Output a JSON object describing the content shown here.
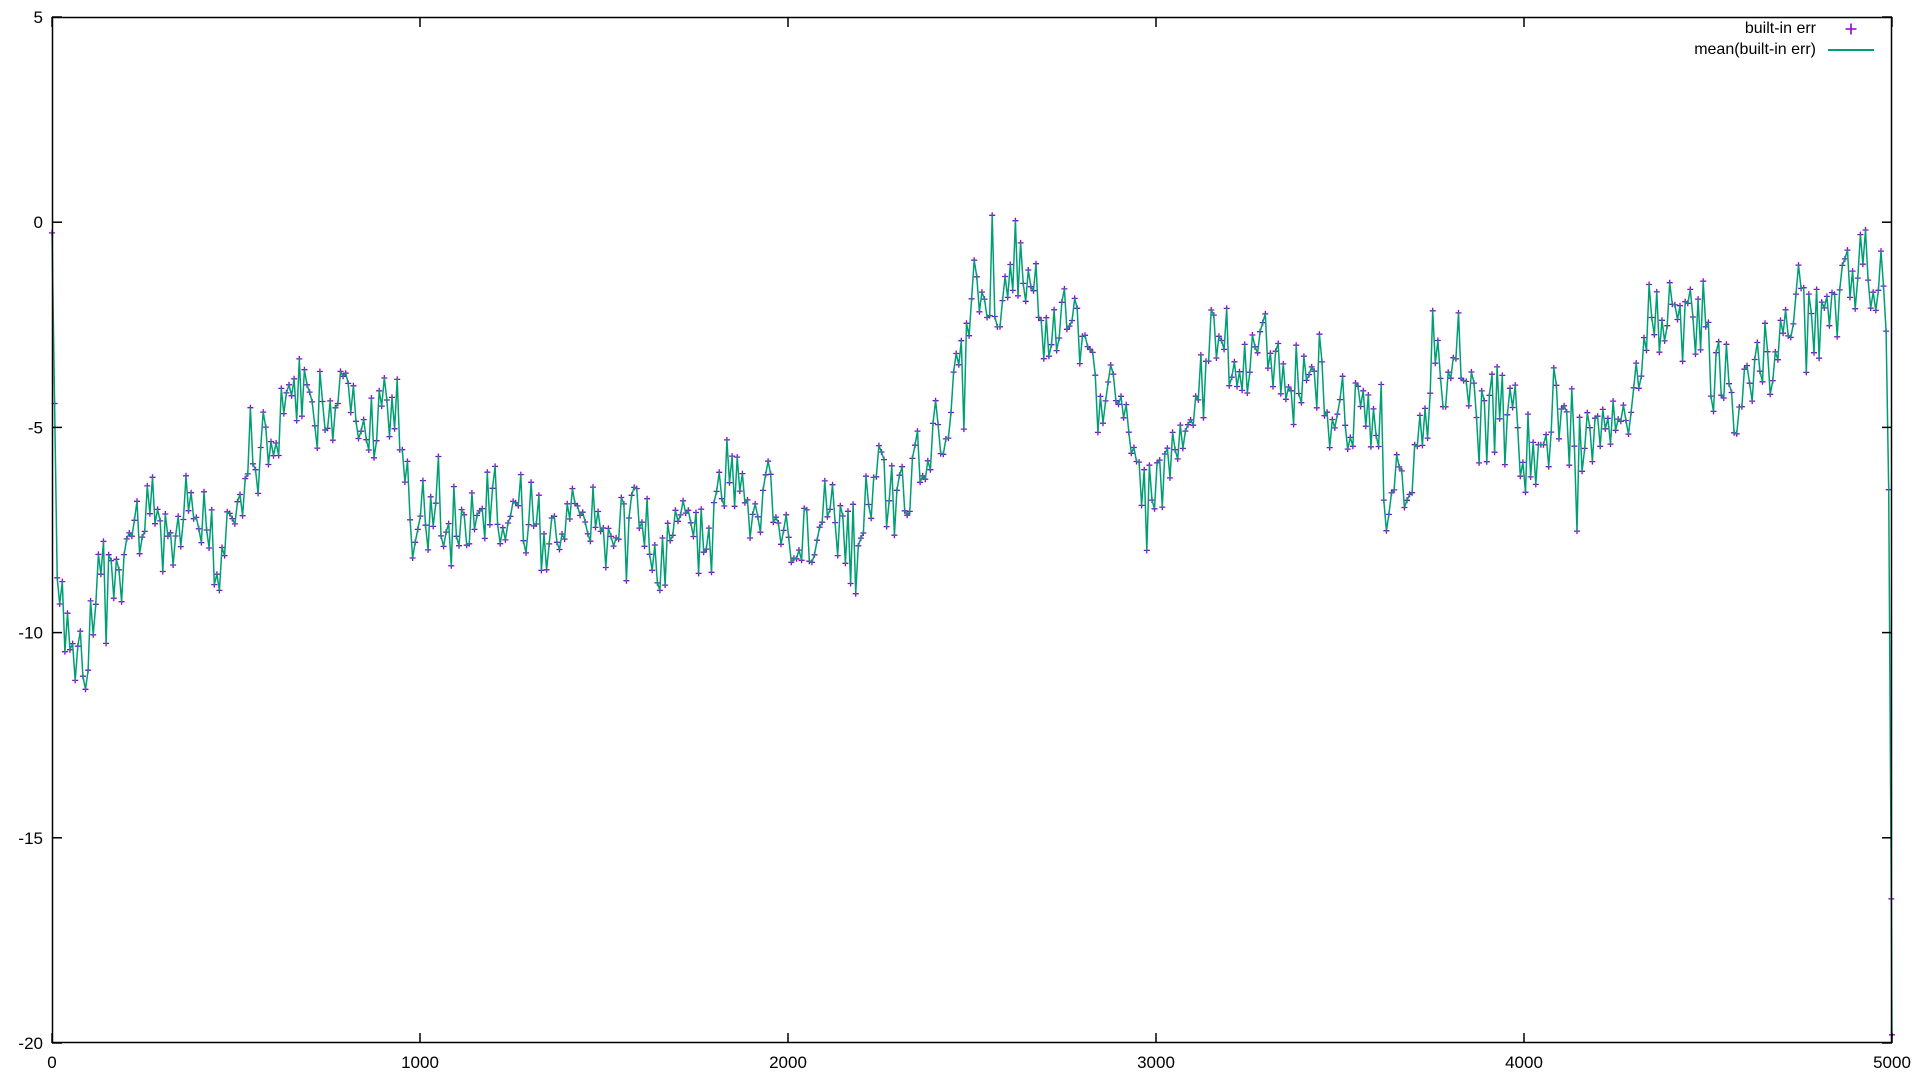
{
  "page": {
    "background": "#ffffff"
  },
  "colors": {
    "points": "#9400d3",
    "line": "#009e73",
    "axis": "#000000",
    "text": "#000000"
  },
  "legend": {
    "items": [
      {
        "label": "built-in err",
        "sample": "plus-marker"
      },
      {
        "label": "mean(built-in err)",
        "sample": "line"
      }
    ]
  },
  "axes": {
    "x_tick_labels": [
      "0",
      "1000",
      "2000",
      "3000",
      "4000",
      "5000"
    ],
    "x_tick_values": [
      0,
      1000,
      2000,
      3000,
      4000,
      5000
    ],
    "y_tick_labels": [
      "5",
      "0",
      "-5",
      "-10",
      "-15",
      "-20"
    ],
    "y_tick_values": [
      5,
      0,
      -5,
      -10,
      -15,
      -20
    ]
  },
  "chart_data": {
    "type": "scatter",
    "title": "",
    "xlabel": "",
    "ylabel": "",
    "xlim": [
      0,
      5000
    ],
    "ylim": [
      -20,
      5
    ],
    "grid": false,
    "legend_position": "top-right-inside",
    "series": [
      {
        "name": "built-in err",
        "style": "points",
        "marker": "plus",
        "color": "#9400d3"
      },
      {
        "name": "mean(built-in err)",
        "style": "line",
        "color": "#009e73"
      }
    ],
    "point_step": 7,
    "noise": {
      "sigma": 0.62,
      "spike_prob": 0.05,
      "spike_mag": 1.3,
      "seed": 1337
    },
    "trend_anchors": [
      [
        0,
        -0.3
      ],
      [
        7,
        -4.5
      ],
      [
        14,
        -8.8
      ],
      [
        30,
        -9.2
      ],
      [
        60,
        -9.4
      ],
      [
        90,
        -9.7
      ],
      [
        120,
        -9.2
      ],
      [
        160,
        -8.5
      ],
      [
        200,
        -7.9
      ],
      [
        260,
        -7.6
      ],
      [
        320,
        -7.5
      ],
      [
        360,
        -7.1
      ],
      [
        420,
        -7.6
      ],
      [
        470,
        -7.3
      ],
      [
        520,
        -6.7
      ],
      [
        560,
        -5.9
      ],
      [
        600,
        -5.2
      ],
      [
        640,
        -4.6
      ],
      [
        690,
        -4.1
      ],
      [
        740,
        -4.2
      ],
      [
        800,
        -4.6
      ],
      [
        850,
        -4.7
      ],
      [
        890,
        -5.2
      ],
      [
        930,
        -5.5
      ],
      [
        970,
        -6.4
      ],
      [
        1010,
        -7.0
      ],
      [
        1060,
        -7.4
      ],
      [
        1110,
        -7.2
      ],
      [
        1160,
        -7.7
      ],
      [
        1210,
        -7.8
      ],
      [
        1260,
        -7.5
      ],
      [
        1310,
        -7.7
      ],
      [
        1360,
        -7.2
      ],
      [
        1400,
        -6.9
      ],
      [
        1450,
        -7.4
      ],
      [
        1500,
        -7.7
      ],
      [
        1550,
        -7.4
      ],
      [
        1600,
        -7.8
      ],
      [
        1650,
        -7.3
      ],
      [
        1700,
        -7.0
      ],
      [
        1760,
        -7.2
      ],
      [
        1810,
        -6.9
      ],
      [
        1860,
        -6.7
      ],
      [
        1910,
        -6.6
      ],
      [
        1950,
        -7.3
      ],
      [
        2000,
        -7.7
      ],
      [
        2050,
        -7.4
      ],
      [
        2100,
        -7.8
      ],
      [
        2150,
        -7.6
      ],
      [
        2200,
        -7.4
      ],
      [
        2250,
        -6.9
      ],
      [
        2300,
        -6.1
      ],
      [
        2330,
        -5.4
      ],
      [
        2360,
        -5.8
      ],
      [
        2400,
        -5.0
      ],
      [
        2440,
        -3.9
      ],
      [
        2480,
        -2.8
      ],
      [
        2520,
        -2.0
      ],
      [
        2570,
        -1.6
      ],
      [
        2620,
        -1.3
      ],
      [
        2660,
        -1.4
      ],
      [
        2700,
        -1.8
      ],
      [
        2750,
        -2.5
      ],
      [
        2790,
        -2.9
      ],
      [
        2830,
        -3.8
      ],
      [
        2870,
        -4.6
      ],
      [
        2910,
        -5.3
      ],
      [
        2950,
        -5.7
      ],
      [
        3000,
        -5.9
      ],
      [
        3040,
        -5.5
      ],
      [
        3080,
        -4.4
      ],
      [
        3120,
        -3.8
      ],
      [
        3160,
        -3.3
      ],
      [
        3200,
        -3.1
      ],
      [
        3240,
        -3.4
      ],
      [
        3280,
        -3.0
      ],
      [
        3320,
        -3.2
      ],
      [
        3360,
        -3.1
      ],
      [
        3400,
        -3.7
      ],
      [
        3450,
        -4.3
      ],
      [
        3500,
        -4.7
      ],
      [
        3550,
        -5.0
      ],
      [
        3600,
        -5.6
      ],
      [
        3650,
        -6.2
      ],
      [
        3690,
        -6.6
      ],
      [
        3715,
        -6.0
      ],
      [
        3745,
        -3.6
      ],
      [
        3770,
        -3.3
      ],
      [
        3800,
        -3.9
      ],
      [
        3850,
        -4.5
      ],
      [
        3900,
        -4.7
      ],
      [
        3950,
        -4.6
      ],
      [
        4000,
        -5.1
      ],
      [
        4050,
        -5.2
      ],
      [
        4100,
        -4.9
      ],
      [
        4150,
        -5.3
      ],
      [
        4200,
        -5.4
      ],
      [
        4250,
        -4.7
      ],
      [
        4300,
        -3.7
      ],
      [
        4350,
        -2.4
      ],
      [
        4390,
        -1.7
      ],
      [
        4430,
        -2.1
      ],
      [
        4470,
        -2.7
      ],
      [
        4510,
        -3.4
      ],
      [
        4560,
        -4.2
      ],
      [
        4600,
        -4.0
      ],
      [
        4650,
        -3.3
      ],
      [
        4700,
        -2.6
      ],
      [
        4750,
        -2.3
      ],
      [
        4800,
        -2.4
      ],
      [
        4850,
        -1.9
      ],
      [
        4900,
        -1.5
      ],
      [
        4945,
        -1.0
      ],
      [
        4975,
        -1.2
      ],
      [
        4987,
        -2.9
      ],
      [
        4993,
        -8.0
      ],
      [
        5000,
        -19.8
      ]
    ]
  }
}
